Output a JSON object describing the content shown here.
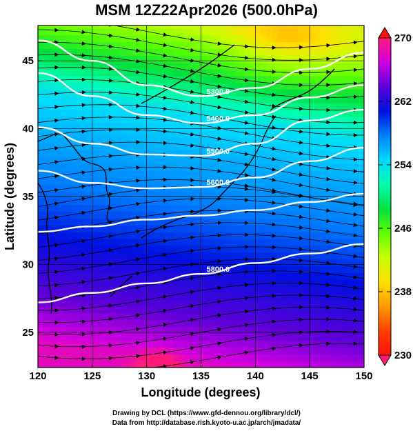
{
  "title": "MSM 12Z22Apr2026 (500.0hPa)",
  "axes": {
    "xlabel": "Longitude (degrees)",
    "ylabel": "Latitude  (degrees)",
    "xticks": [
      120,
      125,
      130,
      135,
      140,
      145,
      150
    ],
    "yticks": [
      25,
      30,
      35,
      40,
      45
    ],
    "xlim": [
      120,
      150
    ],
    "ylim": [
      22.4,
      47.6
    ]
  },
  "colorbar": {
    "ticks": [
      270,
      262,
      254,
      246,
      238,
      230
    ],
    "range": [
      230,
      270
    ],
    "colors": [
      "#ff1a7a",
      "#d000e0",
      "#5a00d8",
      "#0010e0",
      "#0080ff",
      "#00d8ff",
      "#00ffb0",
      "#00e040",
      "#60ff00",
      "#c8ff00",
      "#ffe000",
      "#ff9a00",
      "#ff4000",
      "#ff1010"
    ]
  },
  "chart_data": {
    "type": "heatmap",
    "variable": "temperature_K_and_geopotential_height_m_with_streamlines",
    "contours": [
      {
        "label": "5300.0",
        "points": [
          [
            120,
            46.5
          ],
          [
            125,
            45.0
          ],
          [
            130,
            43.2
          ],
          [
            135,
            42.4
          ],
          [
            140,
            43.0
          ],
          [
            145,
            44.4
          ],
          [
            150,
            45.6
          ]
        ]
      },
      {
        "label": "5400.0",
        "points": [
          [
            120,
            44.1
          ],
          [
            125,
            42.4
          ],
          [
            130,
            41.0
          ],
          [
            135,
            40.4
          ],
          [
            140,
            41.0
          ],
          [
            145,
            42.3
          ],
          [
            150,
            43.2
          ]
        ]
      },
      {
        "label": "5500.0",
        "points": [
          [
            120,
            40.1
          ],
          [
            125,
            38.9
          ],
          [
            130,
            38.1
          ],
          [
            135,
            38.0
          ],
          [
            140,
            38.9
          ],
          [
            145,
            40.6
          ],
          [
            150,
            41.4
          ]
        ]
      },
      {
        "label": "5600.0",
        "points": [
          [
            120,
            36.9
          ],
          [
            125,
            36.0
          ],
          [
            130,
            35.6
          ],
          [
            135,
            35.7
          ],
          [
            140,
            36.4
          ],
          [
            145,
            37.6
          ],
          [
            150,
            38.6
          ]
        ]
      },
      {
        "label": "",
        "points": [
          [
            120,
            32.4
          ],
          [
            125,
            32.8
          ],
          [
            130,
            33.3
          ],
          [
            135,
            33.6
          ],
          [
            140,
            34.0
          ],
          [
            145,
            34.6
          ],
          [
            150,
            35.2
          ]
        ]
      },
      {
        "label": "5800.0",
        "points": [
          [
            120,
            27.2
          ],
          [
            125,
            27.9
          ],
          [
            130,
            28.6
          ],
          [
            135,
            29.3
          ],
          [
            140,
            30.1
          ],
          [
            145,
            30.8
          ],
          [
            150,
            31.5
          ]
        ]
      }
    ],
    "temperature_field": {
      "units": "K",
      "lat_profile": [
        [
          22.4,
          268
        ],
        [
          26,
          264
        ],
        [
          30,
          261
        ],
        [
          34,
          258
        ],
        [
          38,
          256
        ],
        [
          41,
          254
        ],
        [
          43,
          250
        ],
        [
          46,
          245
        ],
        [
          47.6,
          242
        ]
      ],
      "cold_core": {
        "lon": 143.0,
        "lat": 47.0,
        "value": 241
      },
      "warm_spot": {
        "lon": 131.0,
        "lat": 22.6,
        "value": 270
      }
    },
    "coastlines_shown": true,
    "grid": true
  },
  "footer": {
    "line1": "Drawing by DCL (https://www.gfd-dennou.org/library/dcl/)",
    "line2": "Data from http://database.rish.kyoto-u.ac.jp/arch/jmadata/"
  }
}
